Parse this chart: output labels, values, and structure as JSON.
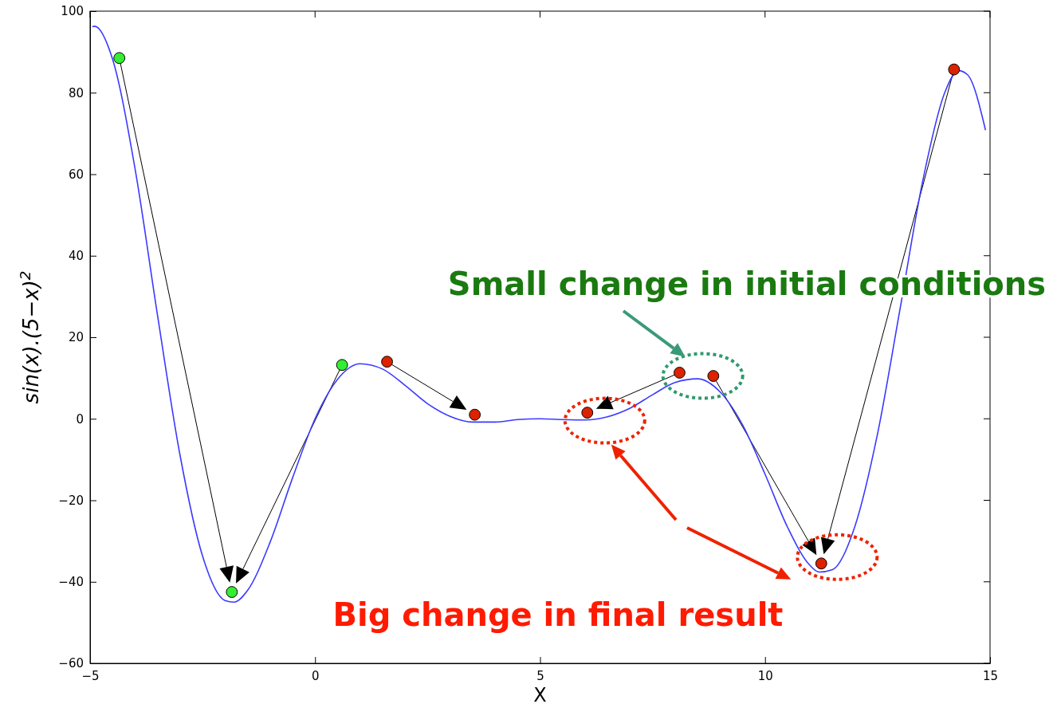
{
  "chart_data": {
    "type": "line",
    "xlabel": "X",
    "ylabel": "sin(x).(5−x)$^{2}$",
    "xlim": [
      -5,
      15
    ],
    "ylim": [
      -60,
      100
    ],
    "xticks": [
      -5,
      0,
      5,
      10,
      15
    ],
    "yticks": [
      -60,
      -40,
      -20,
      0,
      20,
      40,
      60,
      80,
      100
    ],
    "grid": false,
    "annotations": [
      "Small change in initial conditions",
      "Big change in final result"
    ],
    "series": [
      {
        "color": "#3a3aff",
        "marker": "none",
        "x": [
          -4.95,
          -4.9,
          -4.5,
          -4,
          -3.5,
          -3,
          -2.5,
          -2,
          -1.8,
          -1.5,
          -1,
          -0.5,
          0,
          0.5,
          1,
          1.5,
          2,
          2.5,
          3,
          3.5,
          4,
          4.5,
          5,
          5.5,
          6,
          6.5,
          7,
          7.5,
          8,
          8.5,
          9,
          9.5,
          10,
          10.5,
          11,
          11.2,
          11.5,
          12,
          12.5,
          13,
          13.5,
          14,
          14.3,
          14.5,
          14.9
        ],
        "values": [
          96.2,
          96.3,
          88.2,
          61.3,
          25.3,
          -9.0,
          -33.7,
          -44.6,
          -45.0,
          -42.1,
          -30.3,
          -14.5,
          0,
          9.7,
          13.5,
          12.2,
          8.2,
          3.7,
          0.6,
          -0.8,
          -0.8,
          -0.2,
          0,
          -0.2,
          -0.3,
          0.5,
          2.6,
          5.9,
          8.9,
          9.8,
          6.6,
          -1.5,
          -13.6,
          -26.6,
          -36.0,
          -37.6,
          -37.0,
          -26.3,
          -3.7,
          26.9,
          58.1,
          80.2,
          85.4,
          84.4,
          70.8
        ]
      },
      {
        "type": "scatter",
        "color": "#33ee33",
        "marker": "circle",
        "x": [
          -4.35,
          -1.85,
          0.6
        ],
        "values": [
          88.5,
          -42.5,
          13.2
        ]
      },
      {
        "type": "scatter",
        "color": "#dd2200",
        "marker": "circle",
        "x": [
          1.6,
          3.55,
          6.05,
          8.1,
          8.85,
          11.25,
          14.2
        ],
        "values": [
          14,
          1,
          1.5,
          11.3,
          10.5,
          -35.5,
          85.7
        ]
      }
    ]
  }
}
